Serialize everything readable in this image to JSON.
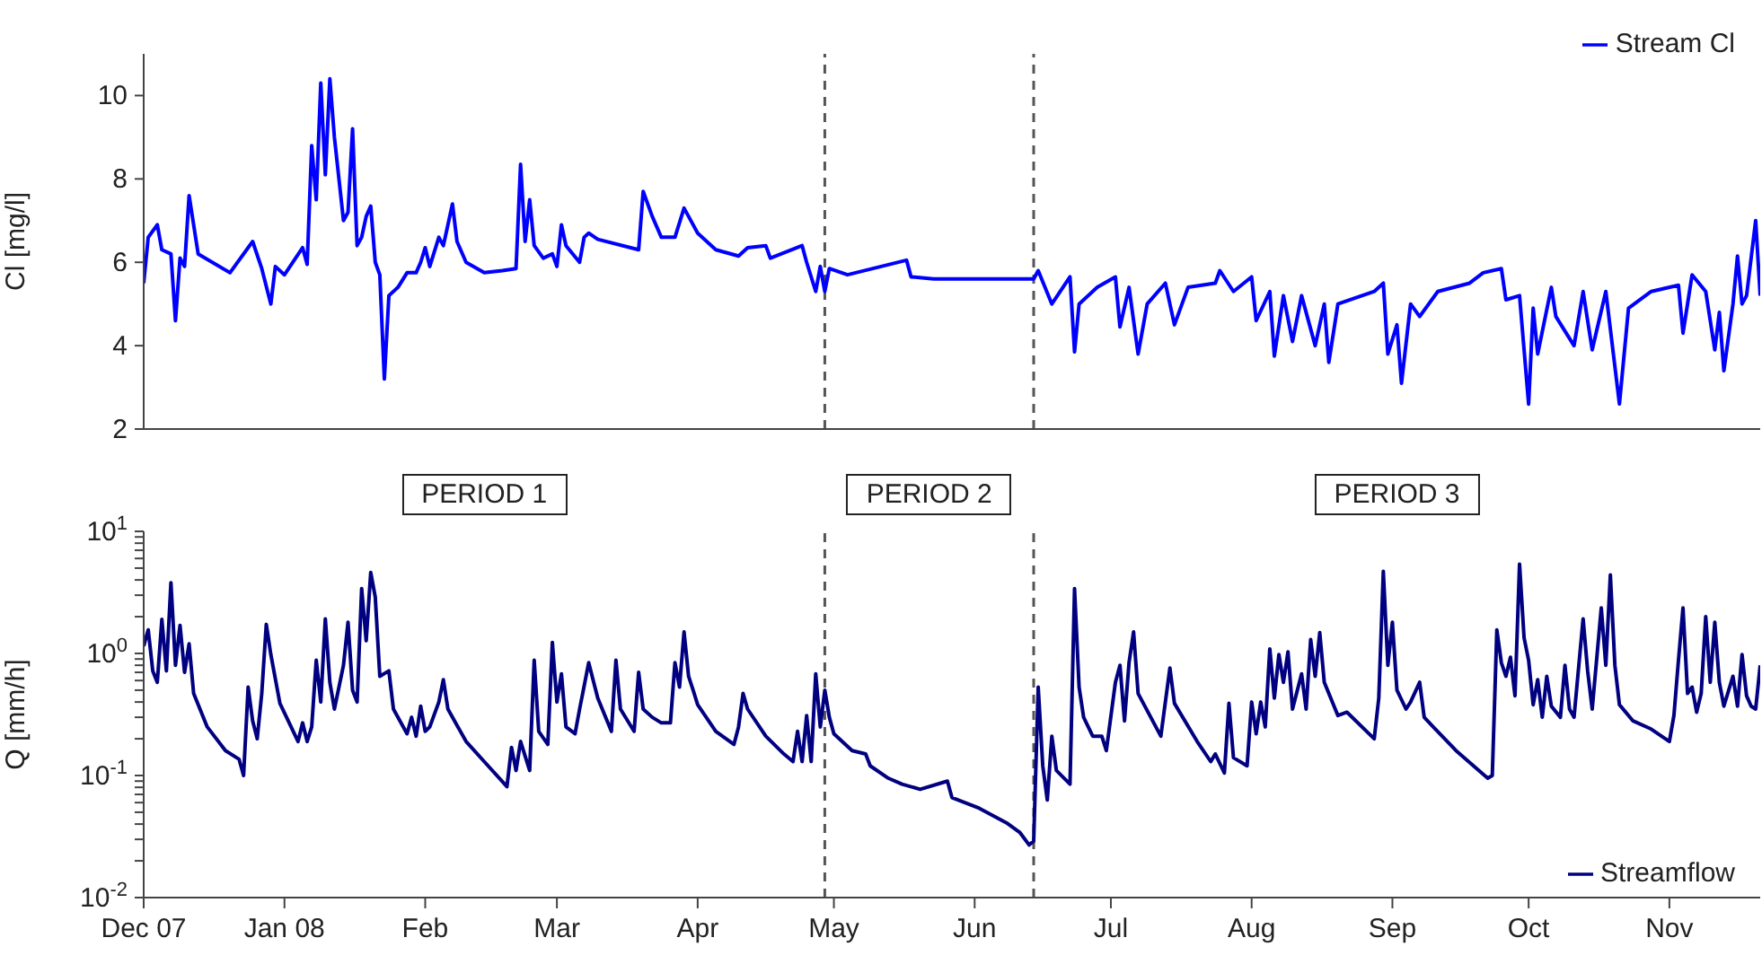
{
  "chart_data": [
    {
      "type": "line",
      "ylabel": "Cl [mg/l]",
      "xlim": [
        "2007-12-01",
        "2008-11-21"
      ],
      "ylim": [
        2,
        11
      ],
      "yticks": [
        2,
        4,
        6,
        8,
        10
      ],
      "tick_labels": "y",
      "legend": "top right",
      "ref_lines": [
        {
          "axis": "x",
          "value": "2008-04-29",
          "color": "#555555",
          "line_style": "dashed"
        },
        {
          "axis": "x",
          "value": "2008-06-14",
          "color": "#555555",
          "line_style": "dashed"
        }
      ],
      "series": [
        {
          "name": "Stream Cl",
          "color": "#0000ff",
          "x": [
            "2007-12-01",
            "2007-12-02",
            "2007-12-04",
            "2007-12-05",
            "2007-12-07",
            "2007-12-08",
            "2007-12-09",
            "2007-12-10",
            "2007-12-11",
            "2007-12-13",
            "2007-12-20",
            "2007-12-25",
            "2007-12-27",
            "2007-12-29",
            "2007-12-30",
            "2008-01-01",
            "2008-01-05",
            "2008-01-06",
            "2008-01-07",
            "2008-01-08",
            "2008-01-09",
            "2008-01-10",
            "2008-01-11",
            "2008-01-12",
            "2008-01-14",
            "2008-01-15",
            "2008-01-16",
            "2008-01-17",
            "2008-01-18",
            "2008-01-19",
            "2008-01-20",
            "2008-01-21",
            "2008-01-22",
            "2008-01-23",
            "2008-01-24",
            "2008-01-26",
            "2008-01-28",
            "2008-01-30",
            "2008-01-31",
            "2008-02-01",
            "2008-02-02",
            "2008-02-04",
            "2008-02-05",
            "2008-02-07",
            "2008-02-08",
            "2008-02-10",
            "2008-02-14",
            "2008-02-18",
            "2008-02-21",
            "2008-02-22",
            "2008-02-23",
            "2008-02-24",
            "2008-02-25",
            "2008-02-27",
            "2008-02-29",
            "2008-03-01",
            "2008-03-02",
            "2008-03-03",
            "2008-03-06",
            "2008-03-07",
            "2008-03-08",
            "2008-03-10",
            "2008-03-19",
            "2008-03-20",
            "2008-03-22",
            "2008-03-24",
            "2008-03-27",
            "2008-03-29",
            "2008-04-01",
            "2008-04-05",
            "2008-04-10",
            "2008-04-12",
            "2008-04-16",
            "2008-04-17",
            "2008-04-24",
            "2008-04-25",
            "2008-04-27",
            "2008-04-28",
            "2008-04-29",
            "2008-04-30",
            "2008-05-04",
            "2008-05-17",
            "2008-05-18",
            "2008-05-23",
            "2008-06-14",
            "2008-06-15",
            "2008-06-18",
            "2008-06-22",
            "2008-06-23",
            "2008-06-24",
            "2008-06-28",
            "2008-07-02",
            "2008-07-03",
            "2008-07-05",
            "2008-07-07",
            "2008-07-09",
            "2008-07-13",
            "2008-07-15",
            "2008-07-18",
            "2008-07-24",
            "2008-07-25",
            "2008-07-28",
            "2008-08-01",
            "2008-08-02",
            "2008-08-05",
            "2008-08-06",
            "2008-08-08",
            "2008-08-10",
            "2008-08-12",
            "2008-08-15",
            "2008-08-17",
            "2008-08-18",
            "2008-08-20",
            "2008-08-28",
            "2008-08-30",
            "2008-08-31",
            "2008-09-02",
            "2008-09-03",
            "2008-09-05",
            "2008-09-07",
            "2008-09-11",
            "2008-09-18",
            "2008-09-21",
            "2008-09-25",
            "2008-09-26",
            "2008-09-29",
            "2008-10-01",
            "2008-10-02",
            "2008-10-03",
            "2008-10-06",
            "2008-10-07",
            "2008-10-11",
            "2008-10-13",
            "2008-10-15",
            "2008-10-18",
            "2008-10-21",
            "2008-10-23",
            "2008-10-28",
            "2008-11-03",
            "2008-11-04",
            "2008-11-06",
            "2008-11-09",
            "2008-11-11",
            "2008-11-12",
            "2008-11-13",
            "2008-11-15",
            "2008-11-16",
            "2008-11-17",
            "2008-11-18",
            "2008-11-20",
            "2008-11-21"
          ],
          "values": [
            5.5,
            6.6,
            6.9,
            6.3,
            6.2,
            4.6,
            6.1,
            5.9,
            7.6,
            6.2,
            5.75,
            6.5,
            5.85,
            5.0,
            5.9,
            5.7,
            6.35,
            5.95,
            8.8,
            7.5,
            10.3,
            8.1,
            10.4,
            9.0,
            7.0,
            7.2,
            9.2,
            6.4,
            6.6,
            7.1,
            7.35,
            6.0,
            5.7,
            3.2,
            5.2,
            5.4,
            5.75,
            5.75,
            6.0,
            6.35,
            5.9,
            6.6,
            6.4,
            7.4,
            6.5,
            6.0,
            5.75,
            5.8,
            5.85,
            8.35,
            6.5,
            7.5,
            6.4,
            6.1,
            6.2,
            5.9,
            6.9,
            6.4,
            6.0,
            6.6,
            6.7,
            6.55,
            6.3,
            7.7,
            7.1,
            6.6,
            6.6,
            7.3,
            6.7,
            6.3,
            6.15,
            6.35,
            6.4,
            6.1,
            6.4,
            6.0,
            5.3,
            5.9,
            5.3,
            5.85,
            5.7,
            6.05,
            5.65,
            5.6,
            5.6,
            5.8,
            5.0,
            5.65,
            3.85,
            5.0,
            5.4,
            5.65,
            4.45,
            5.4,
            3.8,
            5.0,
            5.5,
            4.5,
            5.4,
            5.5,
            5.8,
            5.3,
            5.65,
            4.6,
            5.3,
            3.75,
            5.2,
            4.1,
            5.2,
            4.0,
            5.0,
            3.6,
            5.0,
            5.3,
            5.5,
            3.8,
            4.5,
            3.1,
            5.0,
            4.7,
            5.3,
            5.5,
            5.75,
            5.85,
            5.1,
            5.2,
            2.6,
            4.9,
            3.8,
            5.4,
            4.7,
            4.0,
            5.3,
            3.9,
            5.3,
            2.6,
            4.9,
            5.3,
            5.45,
            4.3,
            5.7,
            5.3,
            3.9,
            4.8,
            3.4,
            5.0,
            6.15,
            5.0,
            5.2,
            7.0,
            5.2
          ]
        }
      ]
    },
    {
      "type": "line",
      "ylabel": "Q [mm/h]",
      "log": "y",
      "xlim": [
        "2007-12-01",
        "2008-11-21"
      ],
      "ylim": [
        0.01,
        10
      ],
      "legend": "bottom right",
      "xticks": [
        {
          "value": "2007-12-01",
          "label": "Dec 07"
        },
        {
          "value": "2008-01-01",
          "label": "Jan 08"
        },
        {
          "value": "2008-02-01",
          "label": "Feb"
        },
        {
          "value": "2008-03-01",
          "label": "Mar"
        },
        {
          "value": "2008-04-01",
          "label": "Apr"
        },
        {
          "value": "2008-05-01",
          "label": "May"
        },
        {
          "value": "2008-06-01",
          "label": "Jun"
        },
        {
          "value": "2008-07-01",
          "label": "Jul"
        },
        {
          "value": "2008-08-01",
          "label": "Aug"
        },
        {
          "value": "2008-09-01",
          "label": "Sep"
        },
        {
          "value": "2008-10-01",
          "label": "Oct"
        },
        {
          "value": "2008-11-01",
          "label": "Nov"
        }
      ],
      "yticks": [
        {
          "value": 0.01,
          "label": "10$^{-2}$"
        },
        {
          "value": 0.02,
          "label": null
        },
        {
          "value": 0.03,
          "label": null
        },
        {
          "value": 0.04,
          "label": null
        },
        {
          "value": 0.05,
          "label": null
        },
        {
          "value": 0.06,
          "label": null
        },
        {
          "value": 0.07,
          "label": null
        },
        {
          "value": 0.08,
          "label": null
        },
        {
          "value": 0.09,
          "label": null
        },
        {
          "value": 0.1,
          "label": "10$^{-1}$"
        },
        {
          "value": 0.2,
          "label": null
        },
        {
          "value": 0.3,
          "label": null
        },
        {
          "value": 0.4,
          "label": null
        },
        {
          "value": 0.5,
          "label": null
        },
        {
          "value": 0.6,
          "label": null
        },
        {
          "value": 0.7,
          "label": null
        },
        {
          "value": 0.8,
          "label": null
        },
        {
          "value": 0.9,
          "label": null
        },
        {
          "value": 1,
          "label": "10$^{0}$"
        },
        {
          "value": 2,
          "label": null
        },
        {
          "value": 3,
          "label": null
        },
        {
          "value": 4,
          "label": null
        },
        {
          "value": 5,
          "label": null
        },
        {
          "value": 6,
          "label": null
        },
        {
          "value": 7,
          "label": null
        },
        {
          "value": 8,
          "label": null
        },
        {
          "value": 9,
          "label": null
        },
        {
          "value": 10,
          "label": "10$^{1}$"
        }
      ],
      "ref_lines": [
        {
          "axis": "x",
          "value": "2008-04-29",
          "color": "#555555",
          "line_style": "dashed"
        },
        {
          "axis": "x",
          "value": "2008-06-14",
          "color": "#555555",
          "line_style": "dashed"
        }
      ],
      "annotations": [
        "PERIOD 1",
        "PERIOD 2",
        "PERIOD 3"
      ],
      "series": [
        {
          "name": "Streamflow",
          "color": "#000080",
          "x": [
            "2007-12-01",
            "2007-12-02",
            "2007-12-03",
            "2007-12-04",
            "2007-12-05",
            "2007-12-06",
            "2007-12-07",
            "2007-12-08",
            "2007-12-09",
            "2007-12-10",
            "2007-12-11",
            "2007-12-12",
            "2007-12-15",
            "2007-12-19",
            "2007-12-22",
            "2007-12-23",
            "2007-12-24",
            "2007-12-25",
            "2007-12-26",
            "2007-12-27",
            "2007-12-28",
            "2007-12-29",
            "2007-12-31",
            "2008-01-04",
            "2008-01-05",
            "2008-01-06",
            "2008-01-07",
            "2008-01-08",
            "2008-01-09",
            "2008-01-10",
            "2008-01-11",
            "2008-01-12",
            "2008-01-14",
            "2008-01-15",
            "2008-01-16",
            "2008-01-17",
            "2008-01-18",
            "2008-01-19",
            "2008-01-20",
            "2008-01-21",
            "2008-01-22",
            "2008-01-24",
            "2008-01-25",
            "2008-01-28",
            "2008-01-29",
            "2008-01-30",
            "2008-01-31",
            "2008-02-01",
            "2008-02-02",
            "2008-02-04",
            "2008-02-05",
            "2008-02-06",
            "2008-02-10",
            "2008-02-14",
            "2008-02-19",
            "2008-02-20",
            "2008-02-21",
            "2008-02-22",
            "2008-02-24",
            "2008-02-25",
            "2008-02-26",
            "2008-02-28",
            "2008-02-29",
            "2008-03-01",
            "2008-03-02",
            "2008-03-03",
            "2008-03-05",
            "2008-03-06",
            "2008-03-07",
            "2008-03-08",
            "2008-03-10",
            "2008-03-13",
            "2008-03-14",
            "2008-03-15",
            "2008-03-18",
            "2008-03-19",
            "2008-03-20",
            "2008-03-22",
            "2008-03-24",
            "2008-03-26",
            "2008-03-27",
            "2008-03-28",
            "2008-03-29",
            "2008-03-30",
            "2008-03-31",
            "2008-04-01",
            "2008-04-05",
            "2008-04-09",
            "2008-04-10",
            "2008-04-11",
            "2008-04-12",
            "2008-04-16",
            "2008-04-20",
            "2008-04-22",
            "2008-04-23",
            "2008-04-24",
            "2008-04-25",
            "2008-04-26",
            "2008-04-27",
            "2008-04-28",
            "2008-04-29",
            "2008-04-30",
            "2008-05-01",
            "2008-05-05",
            "2008-05-08",
            "2008-05-09",
            "2008-05-13",
            "2008-05-16",
            "2008-05-20",
            "2008-05-26",
            "2008-05-27",
            "2008-06-02",
            "2008-06-08",
            "2008-06-11",
            "2008-06-13",
            "2008-06-14",
            "2008-06-15",
            "2008-06-16",
            "2008-06-17",
            "2008-06-18",
            "2008-06-19",
            "2008-06-22",
            "2008-06-23",
            "2008-06-24",
            "2008-06-25",
            "2008-06-27",
            "2008-06-29",
            "2008-06-30",
            "2008-07-02",
            "2008-07-03",
            "2008-07-04",
            "2008-07-05",
            "2008-07-06",
            "2008-07-07",
            "2008-07-12",
            "2008-07-14",
            "2008-07-15",
            "2008-07-20",
            "2008-07-23",
            "2008-07-24",
            "2008-07-26",
            "2008-07-27",
            "2008-07-28",
            "2008-07-31",
            "2008-08-01",
            "2008-08-02",
            "2008-08-03",
            "2008-08-04",
            "2008-08-05",
            "2008-08-06",
            "2008-08-07",
            "2008-08-08",
            "2008-08-09",
            "2008-08-10",
            "2008-08-12",
            "2008-08-13",
            "2008-08-14",
            "2008-08-15",
            "2008-08-16",
            "2008-08-17",
            "2008-08-20",
            "2008-08-22",
            "2008-08-28",
            "2008-08-29",
            "2008-08-30",
            "2008-08-31",
            "2008-09-01",
            "2008-09-02",
            "2008-09-04",
            "2008-09-05",
            "2008-09-07",
            "2008-09-08",
            "2008-09-10",
            "2008-09-15",
            "2008-09-20",
            "2008-09-22",
            "2008-09-23",
            "2008-09-24",
            "2008-09-25",
            "2008-09-26",
            "2008-09-27",
            "2008-09-28",
            "2008-09-29",
            "2008-09-30",
            "2008-10-01",
            "2008-10-02",
            "2008-10-03",
            "2008-10-04",
            "2008-10-05",
            "2008-10-06",
            "2008-10-08",
            "2008-10-09",
            "2008-10-10",
            "2008-10-11",
            "2008-10-13",
            "2008-10-14",
            "2008-10-15",
            "2008-10-17",
            "2008-10-18",
            "2008-10-19",
            "2008-10-20",
            "2008-10-21",
            "2008-10-24",
            "2008-10-28",
            "2008-11-01",
            "2008-11-02",
            "2008-11-03",
            "2008-11-04",
            "2008-11-05",
            "2008-11-06",
            "2008-11-07",
            "2008-11-08",
            "2008-11-09",
            "2008-11-10",
            "2008-11-11",
            "2008-11-12",
            "2008-11-13",
            "2008-11-15",
            "2008-11-16",
            "2008-11-17",
            "2008-11-18",
            "2008-11-19",
            "2008-11-20",
            "2008-11-21"
          ],
          "values": [
            1.15,
            1.56,
            0.72,
            0.58,
            1.9,
            0.72,
            3.8,
            0.8,
            1.7,
            0.7,
            1.2,
            0.47,
            0.25,
            0.16,
            0.136,
            0.1,
            0.53,
            0.28,
            0.2,
            0.47,
            1.73,
            0.98,
            0.39,
            0.19,
            0.27,
            0.19,
            0.25,
            0.88,
            0.4,
            1.92,
            0.58,
            0.35,
            0.8,
            1.8,
            0.5,
            0.4,
            3.4,
            1.27,
            4.6,
            2.9,
            0.65,
            0.72,
            0.35,
            0.22,
            0.3,
            0.21,
            0.37,
            0.23,
            0.25,
            0.4,
            0.61,
            0.35,
            0.19,
            0.13,
            0.081,
            0.17,
            0.11,
            0.19,
            0.11,
            0.88,
            0.23,
            0.18,
            1.23,
            0.4,
            0.68,
            0.25,
            0.22,
            0.35,
            0.54,
            0.84,
            0.43,
            0.23,
            0.88,
            0.35,
            0.23,
            0.7,
            0.35,
            0.3,
            0.27,
            0.27,
            0.84,
            0.53,
            1.5,
            0.65,
            0.5,
            0.38,
            0.23,
            0.18,
            0.25,
            0.47,
            0.35,
            0.21,
            0.15,
            0.13,
            0.23,
            0.13,
            0.31,
            0.13,
            0.68,
            0.25,
            0.5,
            0.3,
            0.22,
            0.16,
            0.15,
            0.12,
            0.095,
            0.085,
            0.077,
            0.09,
            0.066,
            0.054,
            0.041,
            0.034,
            0.027,
            0.029,
            0.53,
            0.12,
            0.063,
            0.21,
            0.11,
            0.085,
            3.4,
            0.53,
            0.3,
            0.21,
            0.21,
            0.16,
            0.58,
            0.8,
            0.28,
            0.84,
            1.5,
            0.47,
            0.21,
            0.76,
            0.39,
            0.19,
            0.13,
            0.15,
            0.105,
            0.39,
            0.14,
            0.12,
            0.4,
            0.22,
            0.4,
            0.25,
            1.09,
            0.43,
            0.98,
            0.58,
            1.03,
            0.35,
            0.68,
            0.35,
            1.3,
            0.65,
            1.48,
            0.58,
            0.31,
            0.33,
            0.2,
            0.43,
            4.7,
            0.8,
            1.8,
            0.5,
            0.35,
            0.4,
            0.58,
            0.3,
            0.25,
            0.16,
            0.11,
            0.095,
            0.1,
            1.56,
            0.84,
            0.65,
            0.93,
            0.45,
            5.4,
            1.34,
            0.88,
            0.38,
            0.61,
            0.3,
            0.65,
            0.37,
            0.3,
            0.8,
            0.35,
            0.3,
            1.92,
            0.72,
            0.35,
            2.36,
            0.8,
            4.4,
            0.8,
            0.38,
            0.28,
            0.24,
            0.19,
            0.31,
            0.88,
            2.36,
            0.47,
            0.53,
            0.33,
            0.47,
            2.0,
            0.58,
            1.8,
            0.58,
            0.37,
            0.65,
            0.37,
            0.98,
            0.45,
            0.37,
            0.35,
            0.8
          ]
        }
      ]
    }
  ]
}
